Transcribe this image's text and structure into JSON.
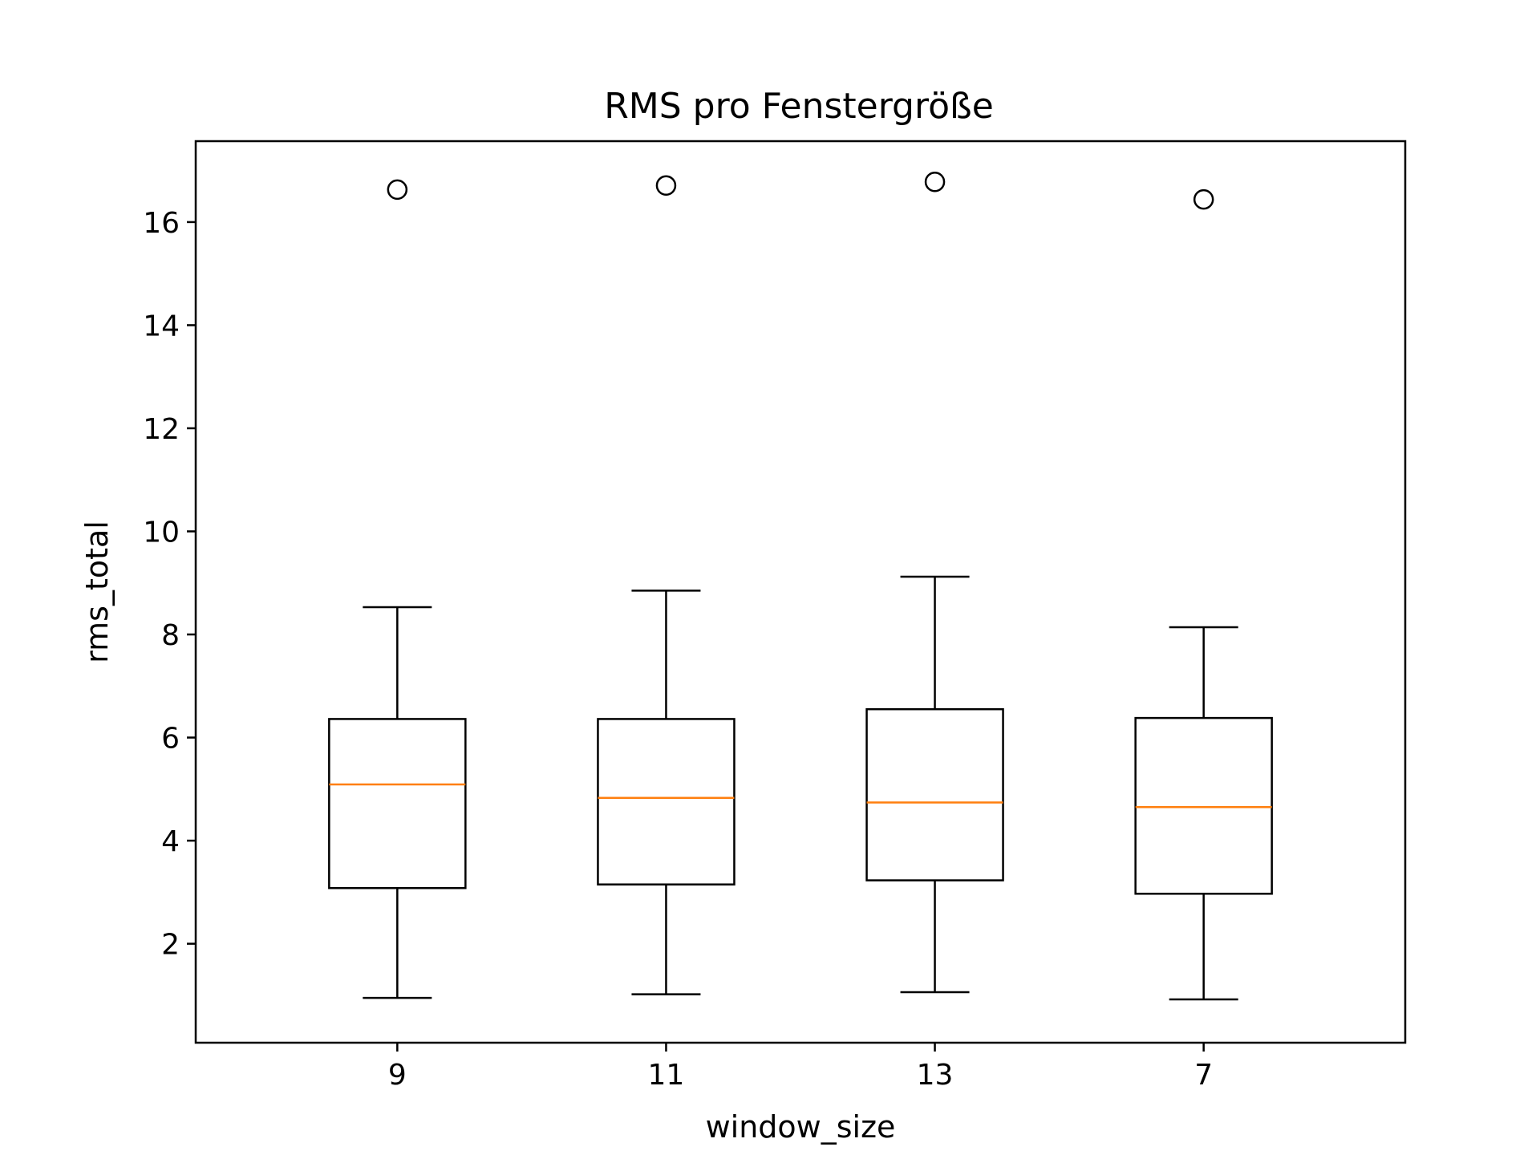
{
  "chart_data": {
    "type": "box",
    "title": "RMS pro Fenstergröße",
    "xlabel": "window_size",
    "ylabel": "rms_total",
    "categories": [
      "9",
      "11",
      "13",
      "7"
    ],
    "boxes": [
      {
        "category": "9",
        "whisker_low": 0.95,
        "q1": 3.08,
        "median": 5.09,
        "q3": 6.36,
        "whisker_high": 8.53,
        "outliers": [
          16.63
        ]
      },
      {
        "category": "11",
        "whisker_low": 1.02,
        "q1": 3.15,
        "median": 4.83,
        "q3": 6.36,
        "whisker_high": 8.85,
        "outliers": [
          16.71
        ]
      },
      {
        "category": "13",
        "whisker_low": 1.06,
        "q1": 3.23,
        "median": 4.74,
        "q3": 6.55,
        "whisker_high": 9.12,
        "outliers": [
          16.78
        ]
      },
      {
        "category": "7",
        "whisker_low": 0.92,
        "q1": 2.97,
        "median": 4.65,
        "q3": 6.38,
        "whisker_high": 8.14,
        "outliers": [
          16.44
        ]
      }
    ],
    "ylim": [
      0.08,
      17.57
    ],
    "yticks": [
      2,
      4,
      6,
      8,
      10,
      12,
      14,
      16
    ],
    "grid": false,
    "colors": {
      "box": "#000000",
      "median": "#ff7f0e",
      "outlier": "#000000"
    }
  }
}
